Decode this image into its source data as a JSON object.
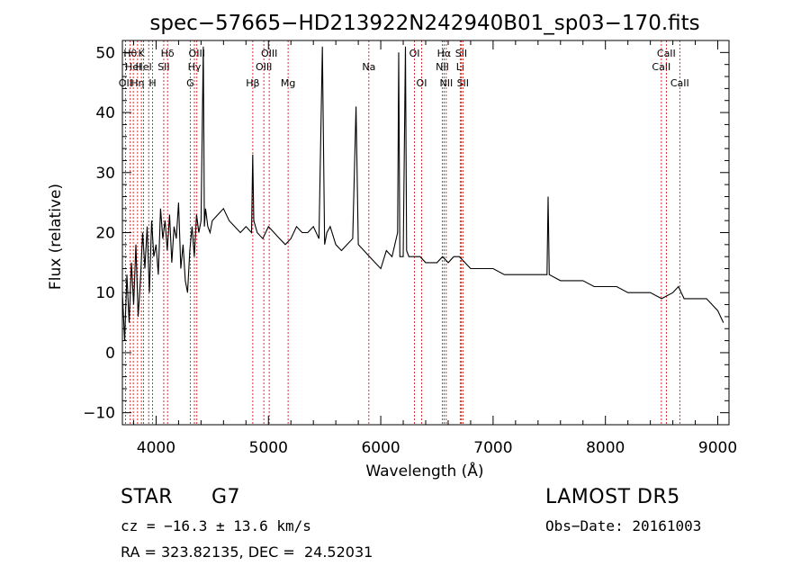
{
  "chart_data": {
    "type": "line",
    "title": "spec−57665−HD213922N242940B01_sp03−170.fits",
    "xlabel": "Wavelength (Å)",
    "ylabel": "Flux (relative)",
    "xlim": [
      3700,
      9100
    ],
    "ylim": [
      -12,
      52
    ],
    "xticks": [
      4000,
      5000,
      6000,
      7000,
      8000,
      9000
    ],
    "yticks": [
      -10,
      0,
      10,
      20,
      30,
      40,
      50
    ],
    "ytick_labels": [
      "−10",
      "0",
      "10",
      "20",
      "30",
      "40",
      "50"
    ],
    "grid": false,
    "line_color": "#000000",
    "marker_color": "#cc0000",
    "series": [
      {
        "x": [
          3700,
          3720,
          3740,
          3760,
          3780,
          3800,
          3820,
          3840,
          3860,
          3880,
          3900,
          3920,
          3940,
          3960,
          3980,
          4000,
          4020,
          4040,
          4060,
          4080,
          4100,
          4120,
          4140,
          4160,
          4180,
          4200,
          4220,
          4240,
          4260,
          4280,
          4300,
          4320,
          4340,
          4360,
          4380,
          4400,
          4420,
          4430,
          4440,
          4460,
          4480,
          4500,
          4550,
          4600,
          4650,
          4700,
          4750,
          4800,
          4850,
          4860,
          4870,
          4900,
          4950,
          5000,
          5050,
          5100,
          5150,
          5200,
          5250,
          5300,
          5350,
          5400,
          5450,
          5480,
          5500,
          5520,
          5550,
          5600,
          5650,
          5700,
          5750,
          5780,
          5800,
          5850,
          5900,
          5950,
          6000,
          6050,
          6100,
          6150,
          6160,
          6170,
          6200,
          6220,
          6230,
          6250,
          6300,
          6350,
          6400,
          6450,
          6500,
          6550,
          6600,
          6650,
          6700,
          6750,
          6800,
          6900,
          7000,
          7100,
          7200,
          7300,
          7400,
          7480,
          7490,
          7500,
          7600,
          7700,
          7800,
          7900,
          8000,
          8100,
          8200,
          8300,
          8400,
          8500,
          8600,
          8650,
          8700,
          8800,
          8900,
          9000,
          9050
        ],
        "y": [
          10,
          2,
          13,
          5,
          15,
          8,
          18,
          6,
          12,
          20,
          14,
          21,
          10,
          22,
          16,
          18,
          13,
          24,
          19,
          22,
          17,
          23,
          15,
          21,
          19,
          25,
          14,
          18,
          12,
          10,
          17,
          21,
          16,
          23,
          20,
          22,
          51,
          21,
          24,
          21,
          20,
          22,
          23,
          24,
          22,
          21,
          20,
          21,
          20,
          33,
          22,
          20,
          19,
          21,
          20,
          19,
          18,
          19,
          21,
          20,
          20,
          21,
          19,
          51,
          18,
          20,
          21,
          18,
          17,
          18,
          19,
          41,
          18,
          17,
          16,
          15,
          14,
          17,
          16,
          20,
          50,
          16,
          16,
          51,
          17,
          16,
          16,
          16,
          15,
          15,
          15,
          16,
          15,
          16,
          16,
          15,
          14,
          14,
          14,
          13,
          13,
          13,
          13,
          13,
          26,
          13,
          12,
          12,
          12,
          11,
          11,
          11,
          10,
          10,
          10,
          9,
          10,
          11,
          9,
          9,
          9,
          7,
          5
        ]
      }
    ],
    "line_markers": [
      {
        "x": 3727,
        "label": "OII",
        "row": 3
      },
      {
        "x": 3770,
        "label": "Hθ",
        "row": 1
      },
      {
        "x": 3797,
        "label": "Hel",
        "row": 2
      },
      {
        "x": 3835,
        "label": "Hη",
        "row": 3
      },
      {
        "x": 3869,
        "label": "K",
        "row": 1
      },
      {
        "x": 3889,
        "label": "Hel",
        "row": 2
      },
      {
        "x": 3934,
        "label": "",
        "row": 0
      },
      {
        "x": 3969,
        "label": "H",
        "row": 3
      },
      {
        "x": 4068,
        "label": "SII",
        "row": 2
      },
      {
        "x": 4102,
        "label": "Hδ",
        "row": 1
      },
      {
        "x": 4304,
        "label": "G",
        "row": 3
      },
      {
        "x": 4341,
        "label": "Hγ",
        "row": 2
      },
      {
        "x": 4363,
        "label": "OIII",
        "row": 1
      },
      {
        "x": 4861,
        "label": "Hβ",
        "row": 3
      },
      {
        "x": 4959,
        "label": "OIII",
        "row": 2
      },
      {
        "x": 5007,
        "label": "OIII",
        "row": 1
      },
      {
        "x": 5175,
        "label": "Mg",
        "row": 3
      },
      {
        "x": 5894,
        "label": "Na",
        "row": 2
      },
      {
        "x": 6300,
        "label": "OI",
        "row": 1
      },
      {
        "x": 6364,
        "label": "OI",
        "row": 3
      },
      {
        "x": 6548,
        "label": "NII",
        "row": 2
      },
      {
        "x": 6563,
        "label": "Hα",
        "row": 1
      },
      {
        "x": 6583,
        "label": "NII",
        "row": 3
      },
      {
        "x": 6707,
        "label": "Li",
        "row": 2
      },
      {
        "x": 6716,
        "label": "SII",
        "row": 1
      },
      {
        "x": 6731,
        "label": "SII",
        "row": 3
      },
      {
        "x": 8498,
        "label": "CaII",
        "row": 2
      },
      {
        "x": 8542,
        "label": "CaII",
        "row": 1
      },
      {
        "x": 8662,
        "label": "CaII",
        "row": 3
      }
    ]
  },
  "info": {
    "object_class": "STAR",
    "subclass": "G7",
    "survey": "LAMOST DR5",
    "cz": "cz = −16.3 ± 13.6 km/s",
    "obs_date": "Obs−Date: 20161003",
    "radec": "RA = 323.82135, DEC =  24.52031"
  }
}
